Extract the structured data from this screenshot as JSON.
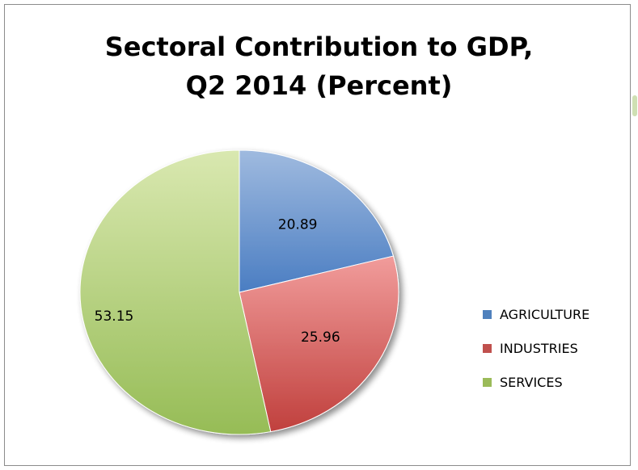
{
  "chart_data": {
    "type": "pie",
    "title_line1": "Sectoral Contribution to GDP,",
    "title_line2": "Q2 2014 (Percent)",
    "slices": [
      {
        "label": "AGRICULTURE",
        "value": 20.89,
        "value_label": "20.89",
        "color": "#4f81bd"
      },
      {
        "label": "INDUSTRIES",
        "value": 25.96,
        "value_label": "25.96",
        "color": "#c0504d"
      },
      {
        "label": "SERVICES",
        "value": 53.15,
        "value_label": "53.15",
        "color": "#9bbb59"
      }
    ],
    "legend_position": "right"
  }
}
